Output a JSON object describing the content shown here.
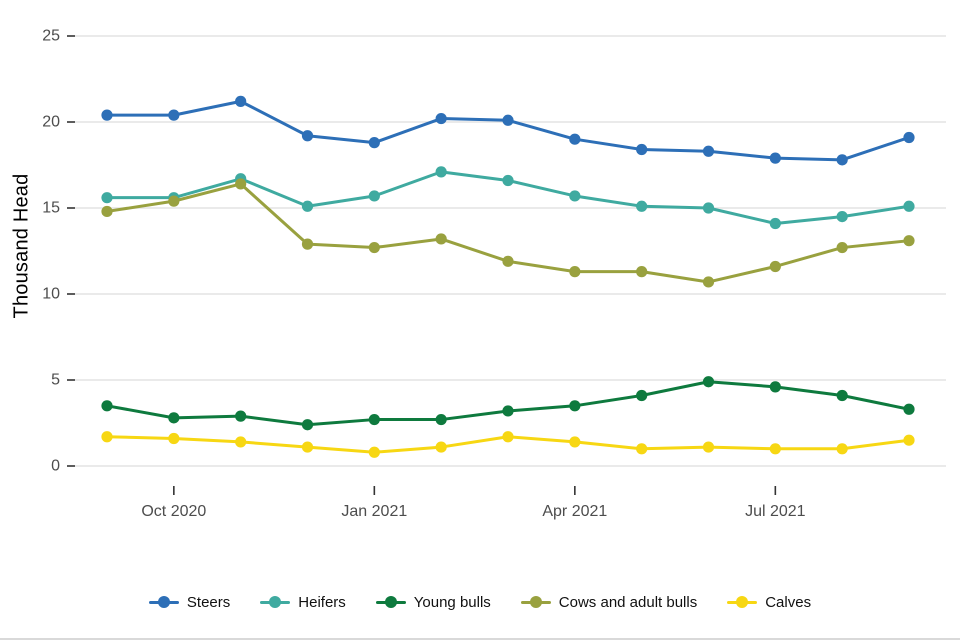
{
  "chart_data": {
    "type": "line",
    "title": "",
    "xlabel": "",
    "ylabel": "Thousand Head",
    "ylim": [
      0,
      25
    ],
    "yticks": [
      0,
      5,
      10,
      15,
      20,
      25
    ],
    "grid": "horizontal",
    "legend_position": "bottom",
    "x": [
      "Sep 2020",
      "Oct 2020",
      "Nov 2020",
      "Dec 2020",
      "Jan 2021",
      "Feb 2021",
      "Mar 2021",
      "Apr 2021",
      "May 2021",
      "Jun 2021",
      "Jul 2021",
      "Aug 2021",
      "Sep 2021"
    ],
    "x_tick_labels": [
      {
        "label": "Oct 2020",
        "index": 1
      },
      {
        "label": "Jan 2021",
        "index": 4
      },
      {
        "label": "Apr 2021",
        "index": 7
      },
      {
        "label": "Jul 2021",
        "index": 10
      }
    ],
    "series": [
      {
        "name": "Steers",
        "color": "#2d6fb7",
        "values": [
          20.4,
          20.4,
          21.2,
          19.2,
          18.8,
          20.2,
          20.1,
          19.0,
          18.4,
          18.3,
          17.9,
          17.8,
          19.1
        ]
      },
      {
        "name": "Heifers",
        "color": "#3faaa0",
        "values": [
          15.6,
          15.6,
          16.7,
          15.1,
          15.7,
          17.1,
          16.6,
          15.7,
          15.1,
          15.0,
          14.1,
          14.5,
          15.1
        ]
      },
      {
        "name": "Young bulls",
        "color": "#0e7a3e",
        "values": [
          3.5,
          2.8,
          2.9,
          2.4,
          2.7,
          2.7,
          3.2,
          3.5,
          4.1,
          4.9,
          4.6,
          4.1,
          3.3
        ]
      },
      {
        "name": "Cows and adult bulls",
        "color": "#99a13f",
        "values": [
          14.8,
          15.4,
          16.4,
          12.9,
          12.7,
          13.2,
          11.9,
          11.3,
          11.3,
          10.7,
          11.6,
          12.7,
          13.1
        ]
      },
      {
        "name": "Calves",
        "color": "#f7d713",
        "values": [
          1.7,
          1.6,
          1.4,
          1.1,
          0.8,
          1.1,
          1.7,
          1.4,
          1.0,
          1.1,
          1.0,
          1.0,
          1.5
        ]
      }
    ]
  },
  "colors": {
    "background": "#ffffff",
    "grid": "#e4e4e4",
    "tick": "#333333",
    "tick_label": "#4d4d4d",
    "axis_title": "#000000",
    "bottom_rule": "#d9d9d9"
  }
}
